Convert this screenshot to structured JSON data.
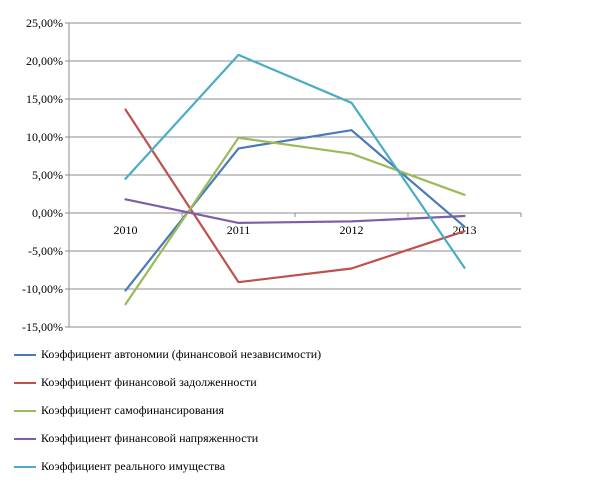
{
  "chart_data": {
    "type": "line",
    "categories": [
      "2010",
      "2011",
      "2012",
      "2013"
    ],
    "ylim": [
      -15,
      25
    ],
    "yticks": [
      25,
      20,
      15,
      10,
      5,
      0,
      -5,
      -10,
      -15
    ],
    "ytick_labels": [
      "25,00%",
      "20,00%",
      "15,00%",
      "10,00%",
      "5,00%",
      "0,00%",
      "-5,00%",
      "-10,00%",
      "-15,00%"
    ],
    "grid": true,
    "legend_position": "bottom",
    "series": [
      {
        "name": "Коэффициент автономии (финансовой независимости)",
        "color": "#4a7ab8",
        "values": [
          -10.2,
          8.5,
          10.9,
          -1.8
        ]
      },
      {
        "name": "Коэффициент финансовой задолженности",
        "color": "#c0504d",
        "values": [
          13.6,
          -9.1,
          -7.3,
          -2.4
        ]
      },
      {
        "name": " Коэффициент самофинансирования",
        "color": "#9bbb59",
        "values": [
          -12.0,
          9.9,
          7.8,
          2.4
        ]
      },
      {
        "name": "Коэффициент финансовой напряженности",
        "color": "#7f5ea8",
        "values": [
          1.8,
          -1.3,
          -1.1,
          -0.4
        ]
      },
      {
        "name": "Коэффициент реального имущества",
        "color": "#4bacc6",
        "values": [
          4.5,
          20.8,
          14.5,
          -7.2
        ]
      }
    ]
  }
}
